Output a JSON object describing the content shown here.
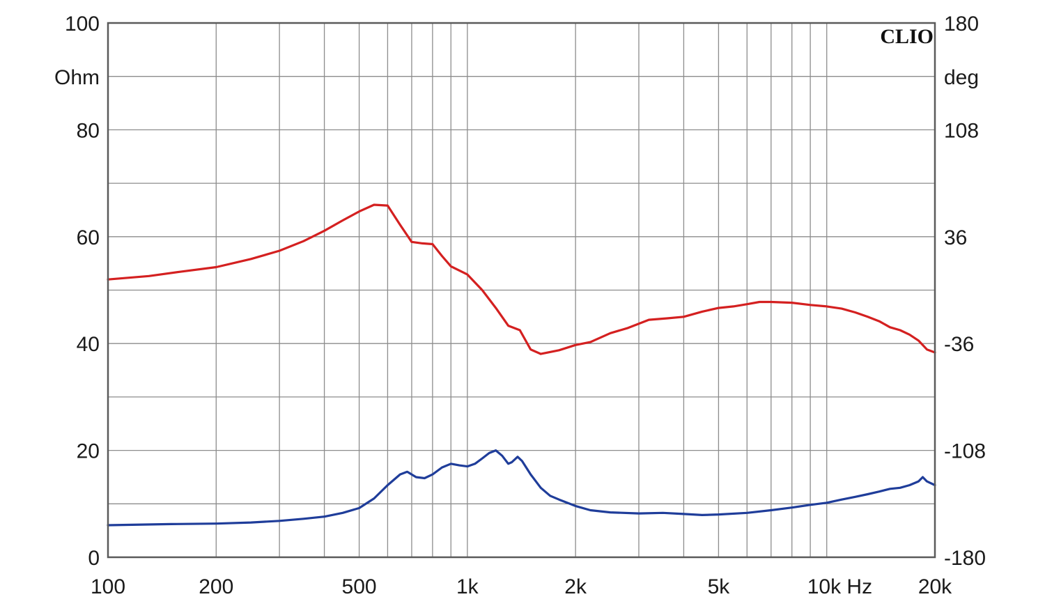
{
  "brand": "CLIO",
  "chart_data": {
    "type": "line",
    "x_scale": "log",
    "xlim": [
      100,
      20000
    ],
    "x_ticks": [
      100,
      200,
      500,
      1000,
      2000,
      5000,
      10000,
      20000
    ],
    "x_tick_labels": [
      "100",
      "200",
      "500",
      "1k",
      "2k",
      "5k",
      "10k Hz",
      "20k"
    ],
    "y_left": {
      "unit": "Ohm",
      "lim": [
        0,
        100
      ],
      "ticks": [
        0,
        20,
        40,
        60,
        80,
        100
      ],
      "tick_labels": [
        "0",
        "20",
        "40",
        "60",
        "80",
        "100"
      ]
    },
    "y_right": {
      "unit": "deg",
      "lim": [
        -180,
        180
      ],
      "ticks": [
        -180,
        -108,
        -36,
        36,
        108,
        180
      ],
      "tick_labels": [
        "-180",
        "-108",
        "-36",
        "36",
        "108",
        "180"
      ]
    },
    "grid": true,
    "series": [
      {
        "color": "#d42020",
        "axis": "right",
        "points": [
          [
            100,
            7.2
          ],
          [
            130,
            9.5
          ],
          [
            160,
            12.5
          ],
          [
            200,
            15.5
          ],
          [
            250,
            21
          ],
          [
            300,
            26.5
          ],
          [
            350,
            33
          ],
          [
            400,
            40
          ],
          [
            450,
            47
          ],
          [
            500,
            53
          ],
          [
            550,
            57.5
          ],
          [
            600,
            57
          ],
          [
            650,
            44
          ],
          [
            700,
            32.5
          ],
          [
            750,
            31.5
          ],
          [
            800,
            31
          ],
          [
            850,
            23
          ],
          [
            900,
            16
          ],
          [
            1000,
            10.5
          ],
          [
            1100,
            0
          ],
          [
            1200,
            -12
          ],
          [
            1300,
            -24
          ],
          [
            1400,
            -27
          ],
          [
            1500,
            -40
          ],
          [
            1600,
            -43
          ],
          [
            1800,
            -40.5
          ],
          [
            2000,
            -37
          ],
          [
            2200,
            -35
          ],
          [
            2500,
            -29
          ],
          [
            2800,
            -25.5
          ],
          [
            3200,
            -20
          ],
          [
            3600,
            -19
          ],
          [
            4000,
            -18
          ],
          [
            4500,
            -14.5
          ],
          [
            5000,
            -12
          ],
          [
            5500,
            -11
          ],
          [
            6000,
            -9.5
          ],
          [
            6500,
            -8
          ],
          [
            7000,
            -8
          ],
          [
            8000,
            -8.5
          ],
          [
            9000,
            -10
          ],
          [
            10000,
            -11
          ],
          [
            11000,
            -12.5
          ],
          [
            12000,
            -15
          ],
          [
            13000,
            -18
          ],
          [
            14000,
            -21
          ],
          [
            15000,
            -25
          ],
          [
            16000,
            -27
          ],
          [
            17000,
            -30
          ],
          [
            18000,
            -34
          ],
          [
            19000,
            -40
          ],
          [
            20000,
            -42
          ]
        ]
      },
      {
        "color": "#1f3d9a",
        "axis": "left",
        "points": [
          [
            100,
            6.0
          ],
          [
            150,
            6.2
          ],
          [
            200,
            6.3
          ],
          [
            250,
            6.5
          ],
          [
            300,
            6.8
          ],
          [
            350,
            7.2
          ],
          [
            400,
            7.6
          ],
          [
            450,
            8.3
          ],
          [
            500,
            9.2
          ],
          [
            550,
            11.0
          ],
          [
            600,
            13.5
          ],
          [
            650,
            15.5
          ],
          [
            680,
            16.0
          ],
          [
            720,
            15.0
          ],
          [
            760,
            14.8
          ],
          [
            800,
            15.5
          ],
          [
            850,
            16.8
          ],
          [
            900,
            17.5
          ],
          [
            950,
            17.2
          ],
          [
            1000,
            17.0
          ],
          [
            1050,
            17.5
          ],
          [
            1100,
            18.5
          ],
          [
            1150,
            19.5
          ],
          [
            1200,
            20.0
          ],
          [
            1250,
            19.0
          ],
          [
            1300,
            17.5
          ],
          [
            1330,
            17.8
          ],
          [
            1380,
            18.8
          ],
          [
            1420,
            18.0
          ],
          [
            1500,
            15.5
          ],
          [
            1600,
            13.0
          ],
          [
            1700,
            11.5
          ],
          [
            1800,
            10.8
          ],
          [
            2000,
            9.6
          ],
          [
            2200,
            8.8
          ],
          [
            2500,
            8.4
          ],
          [
            3000,
            8.2
          ],
          [
            3500,
            8.3
          ],
          [
            4000,
            8.1
          ],
          [
            4500,
            7.9
          ],
          [
            5000,
            8.0
          ],
          [
            6000,
            8.3
          ],
          [
            7000,
            8.8
          ],
          [
            8000,
            9.3
          ],
          [
            9000,
            9.8
          ],
          [
            10000,
            10.2
          ],
          [
            11000,
            10.8
          ],
          [
            12000,
            11.3
          ],
          [
            13000,
            11.8
          ],
          [
            14000,
            12.3
          ],
          [
            15000,
            12.8
          ],
          [
            16000,
            13.0
          ],
          [
            17000,
            13.5
          ],
          [
            18000,
            14.2
          ],
          [
            18500,
            15.0
          ],
          [
            19000,
            14.2
          ],
          [
            20000,
            13.5
          ]
        ]
      }
    ]
  }
}
